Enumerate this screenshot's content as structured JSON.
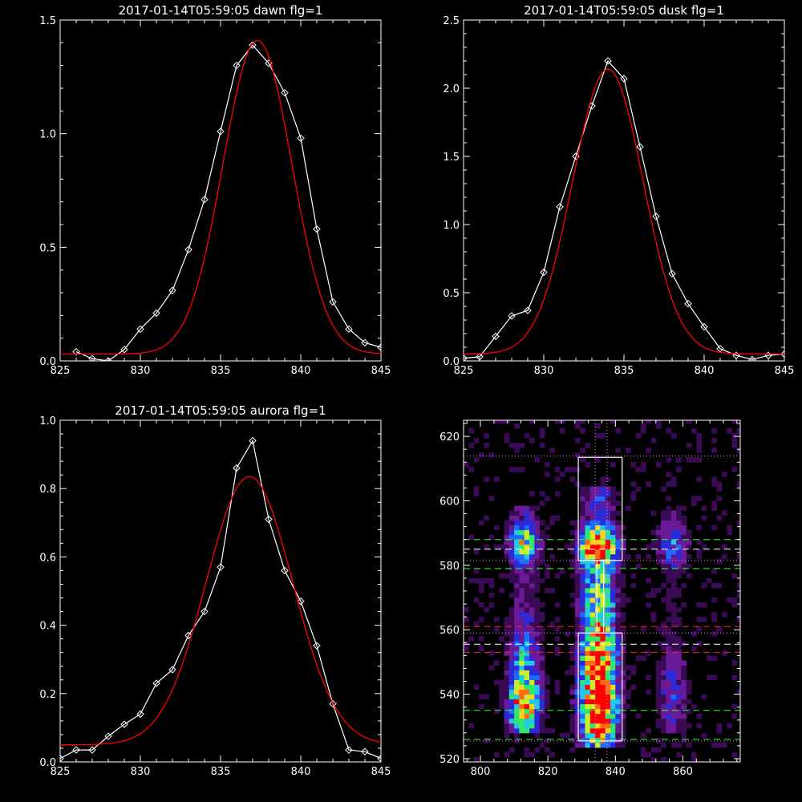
{
  "chart_data": [
    {
      "type": "line",
      "title": "2017-01-14T05:59:05 dawn flg=1",
      "xlim": [
        825,
        845
      ],
      "ylim": [
        0,
        1.5
      ],
      "xticks": [
        825,
        830,
        835,
        840,
        845
      ],
      "xtick_labels": [
        "825",
        "830",
        "835",
        "840",
        "845"
      ],
      "yticks": [
        0,
        0.5,
        1.0,
        1.5
      ],
      "ytick_labels": [
        "0.0",
        "0.5",
        "1.0",
        "1.5"
      ],
      "series": [
        {
          "color": "#ffffff",
          "marker": "diamond",
          "x": [
            826,
            827,
            828,
            829,
            830,
            831,
            832,
            833,
            834,
            835,
            836,
            837,
            838,
            839,
            840,
            841,
            842,
            843,
            844,
            845
          ],
          "y": [
            0.04,
            0.01,
            0.0,
            0.05,
            0.14,
            0.21,
            0.31,
            0.49,
            0.71,
            1.01,
            1.3,
            1.39,
            1.31,
            1.18,
            0.98,
            0.58,
            0.26,
            0.14,
            0.08,
            0.06
          ]
        },
        {
          "color": "#ff0000",
          "gauss": {
            "base": 0.03,
            "amp": 1.38,
            "mu": 837.3,
            "sigma": 2.15
          }
        }
      ]
    },
    {
      "type": "line",
      "title": "2017-01-14T05:59:05 dusk flg=1",
      "xlim": [
        825,
        845
      ],
      "ylim": [
        0,
        2.5
      ],
      "xticks": [
        825,
        830,
        835,
        840,
        845
      ],
      "xtick_labels": [
        "825",
        "830",
        "835",
        "840",
        "845"
      ],
      "yticks": [
        0,
        0.5,
        1.0,
        1.5,
        2.0,
        2.5
      ],
      "ytick_labels": [
        "0.0",
        "0.5",
        "1.0",
        "1.5",
        "2.0",
        "2.5"
      ],
      "series": [
        {
          "color": "#ffffff",
          "marker": "diamond",
          "x": [
            825,
            826,
            827,
            828,
            829,
            830,
            831,
            832,
            833,
            834,
            835,
            836,
            837,
            838,
            839,
            840,
            841,
            842,
            843,
            844,
            845
          ],
          "y": [
            0.02,
            0.03,
            0.18,
            0.33,
            0.37,
            0.65,
            1.13,
            1.5,
            1.87,
            2.2,
            2.07,
            1.57,
            1.06,
            0.64,
            0.42,
            0.25,
            0.09,
            0.04,
            0.01,
            0.04,
            0.05
          ]
        },
        {
          "color": "#ff0000",
          "gauss": {
            "base": 0.05,
            "amp": 2.09,
            "mu": 834.0,
            "sigma": 2.2
          }
        }
      ]
    },
    {
      "type": "line",
      "title": "2017-01-14T05:59:05 aurora flg=1",
      "xlim": [
        825,
        845
      ],
      "ylim": [
        0,
        1.0
      ],
      "xticks": [
        825,
        830,
        835,
        840,
        845
      ],
      "xtick_labels": [
        "825",
        "830",
        "835",
        "840",
        "845"
      ],
      "yticks": [
        0,
        0.2,
        0.4,
        0.6,
        0.8,
        1.0
      ],
      "ytick_labels": [
        "0.0",
        "0.2",
        "0.4",
        "0.6",
        "0.8",
        "1.0"
      ],
      "series": [
        {
          "color": "#ffffff",
          "marker": "diamond",
          "x": [
            825,
            826,
            827,
            828,
            829,
            830,
            831,
            832,
            833,
            834,
            835,
            836,
            837,
            838,
            839,
            840,
            841,
            842,
            843,
            844,
            845
          ],
          "y": [
            0.01,
            0.035,
            0.035,
            0.075,
            0.11,
            0.14,
            0.23,
            0.27,
            0.37,
            0.44,
            0.57,
            0.86,
            0.94,
            0.71,
            0.56,
            0.47,
            0.34,
            0.17,
            0.035,
            0.03,
            0.01
          ]
        },
        {
          "color": "#ff0000",
          "gauss": {
            "base": 0.05,
            "amp": 0.785,
            "mu": 836.8,
            "sigma": 2.7
          }
        }
      ]
    },
    {
      "type": "heatmap",
      "xlim": [
        795,
        877
      ],
      "ylim": [
        519,
        625
      ],
      "xticks": [
        800,
        820,
        840,
        860
      ],
      "xtick_labels": [
        "800",
        "820",
        "840",
        "860"
      ],
      "yticks": [
        520,
        540,
        560,
        580,
        600,
        620
      ],
      "ytick_labels": [
        "520",
        "540",
        "560",
        "580",
        "600",
        "620"
      ],
      "colormap": [
        "#000000",
        "#3a0a55",
        "#6a1a96",
        "#2a2ad8",
        "#1e6cff",
        "#23c8e8",
        "#2ee86a",
        "#c8f02a",
        "#ffd21e",
        "#ff6a10",
        "#ff0000"
      ],
      "columns": [
        {
          "x": 813,
          "width": 8,
          "peaks": [
            {
              "y": 586,
              "amp": 0.55,
              "s": 4
            },
            {
              "y": 535,
              "amp": 0.65,
              "s": 6
            },
            {
              "y": 548,
              "amp": 0.35,
              "s": 10
            }
          ],
          "baseline": 0.18,
          "range": [
            528,
            598
          ]
        },
        {
          "x": 835,
          "width": 9,
          "peaks": [
            {
              "y": 585,
              "amp": 1.0,
              "s": 4
            },
            {
              "y": 535,
              "amp": 1.0,
              "s": 8
            },
            {
              "y": 552,
              "amp": 0.7,
              "s": 8
            },
            {
              "y": 570,
              "amp": 0.35,
              "s": 6
            }
          ],
          "baseline": 0.32,
          "range": [
            523,
            603
          ]
        },
        {
          "x": 857,
          "width": 8,
          "peaks": [
            {
              "y": 586,
              "amp": 0.3,
              "s": 5
            },
            {
              "y": 540,
              "amp": 0.22,
              "s": 8
            }
          ],
          "baseline": 0.1,
          "range": [
            528,
            598
          ]
        }
      ],
      "boxes": [
        {
          "x0": 829,
          "x1": 842,
          "y0": 581.5,
          "y1": 613.5,
          "color": "#ffffff"
        },
        {
          "x0": 829,
          "x1": 842,
          "y0": 525.5,
          "y1": 559,
          "color": "#ffffff"
        },
        {
          "x0": 834.5,
          "x1": 836.5,
          "y0": 559,
          "y1": 581.5,
          "color": "#ffffff"
        }
      ],
      "hlines": [
        {
          "y": 614,
          "color": "#ff80ff",
          "style": "dotted"
        },
        {
          "y": 588,
          "color": "#30ff30",
          "style": "dashed"
        },
        {
          "y": 585,
          "color": "#ffffff",
          "style": "dashed"
        },
        {
          "y": 581.5,
          "color": "#ff80ff",
          "style": "dotted"
        },
        {
          "y": 579,
          "color": "#30ff30",
          "style": "dashed"
        },
        {
          "y": 561,
          "color": "#ff2020",
          "style": "dashed"
        },
        {
          "y": 559,
          "color": "#ff80ff",
          "style": "dotted"
        },
        {
          "y": 555.5,
          "color": "#ffffff",
          "style": "dashed"
        },
        {
          "y": 553,
          "color": "#ff2020",
          "style": "dashed"
        },
        {
          "y": 535,
          "color": "#30ff30",
          "style": "dashed"
        },
        {
          "y": 526,
          "color": "#30ff30",
          "style": "dashed"
        },
        {
          "y": 525.5,
          "color": "#ff80ff",
          "style": "dotted"
        }
      ],
      "vlines": [
        {
          "x": 834,
          "color": "#ff80ff",
          "style": "dotted"
        },
        {
          "x": 837.5,
          "color": "#ff80ff",
          "style": "dotted"
        }
      ]
    }
  ]
}
